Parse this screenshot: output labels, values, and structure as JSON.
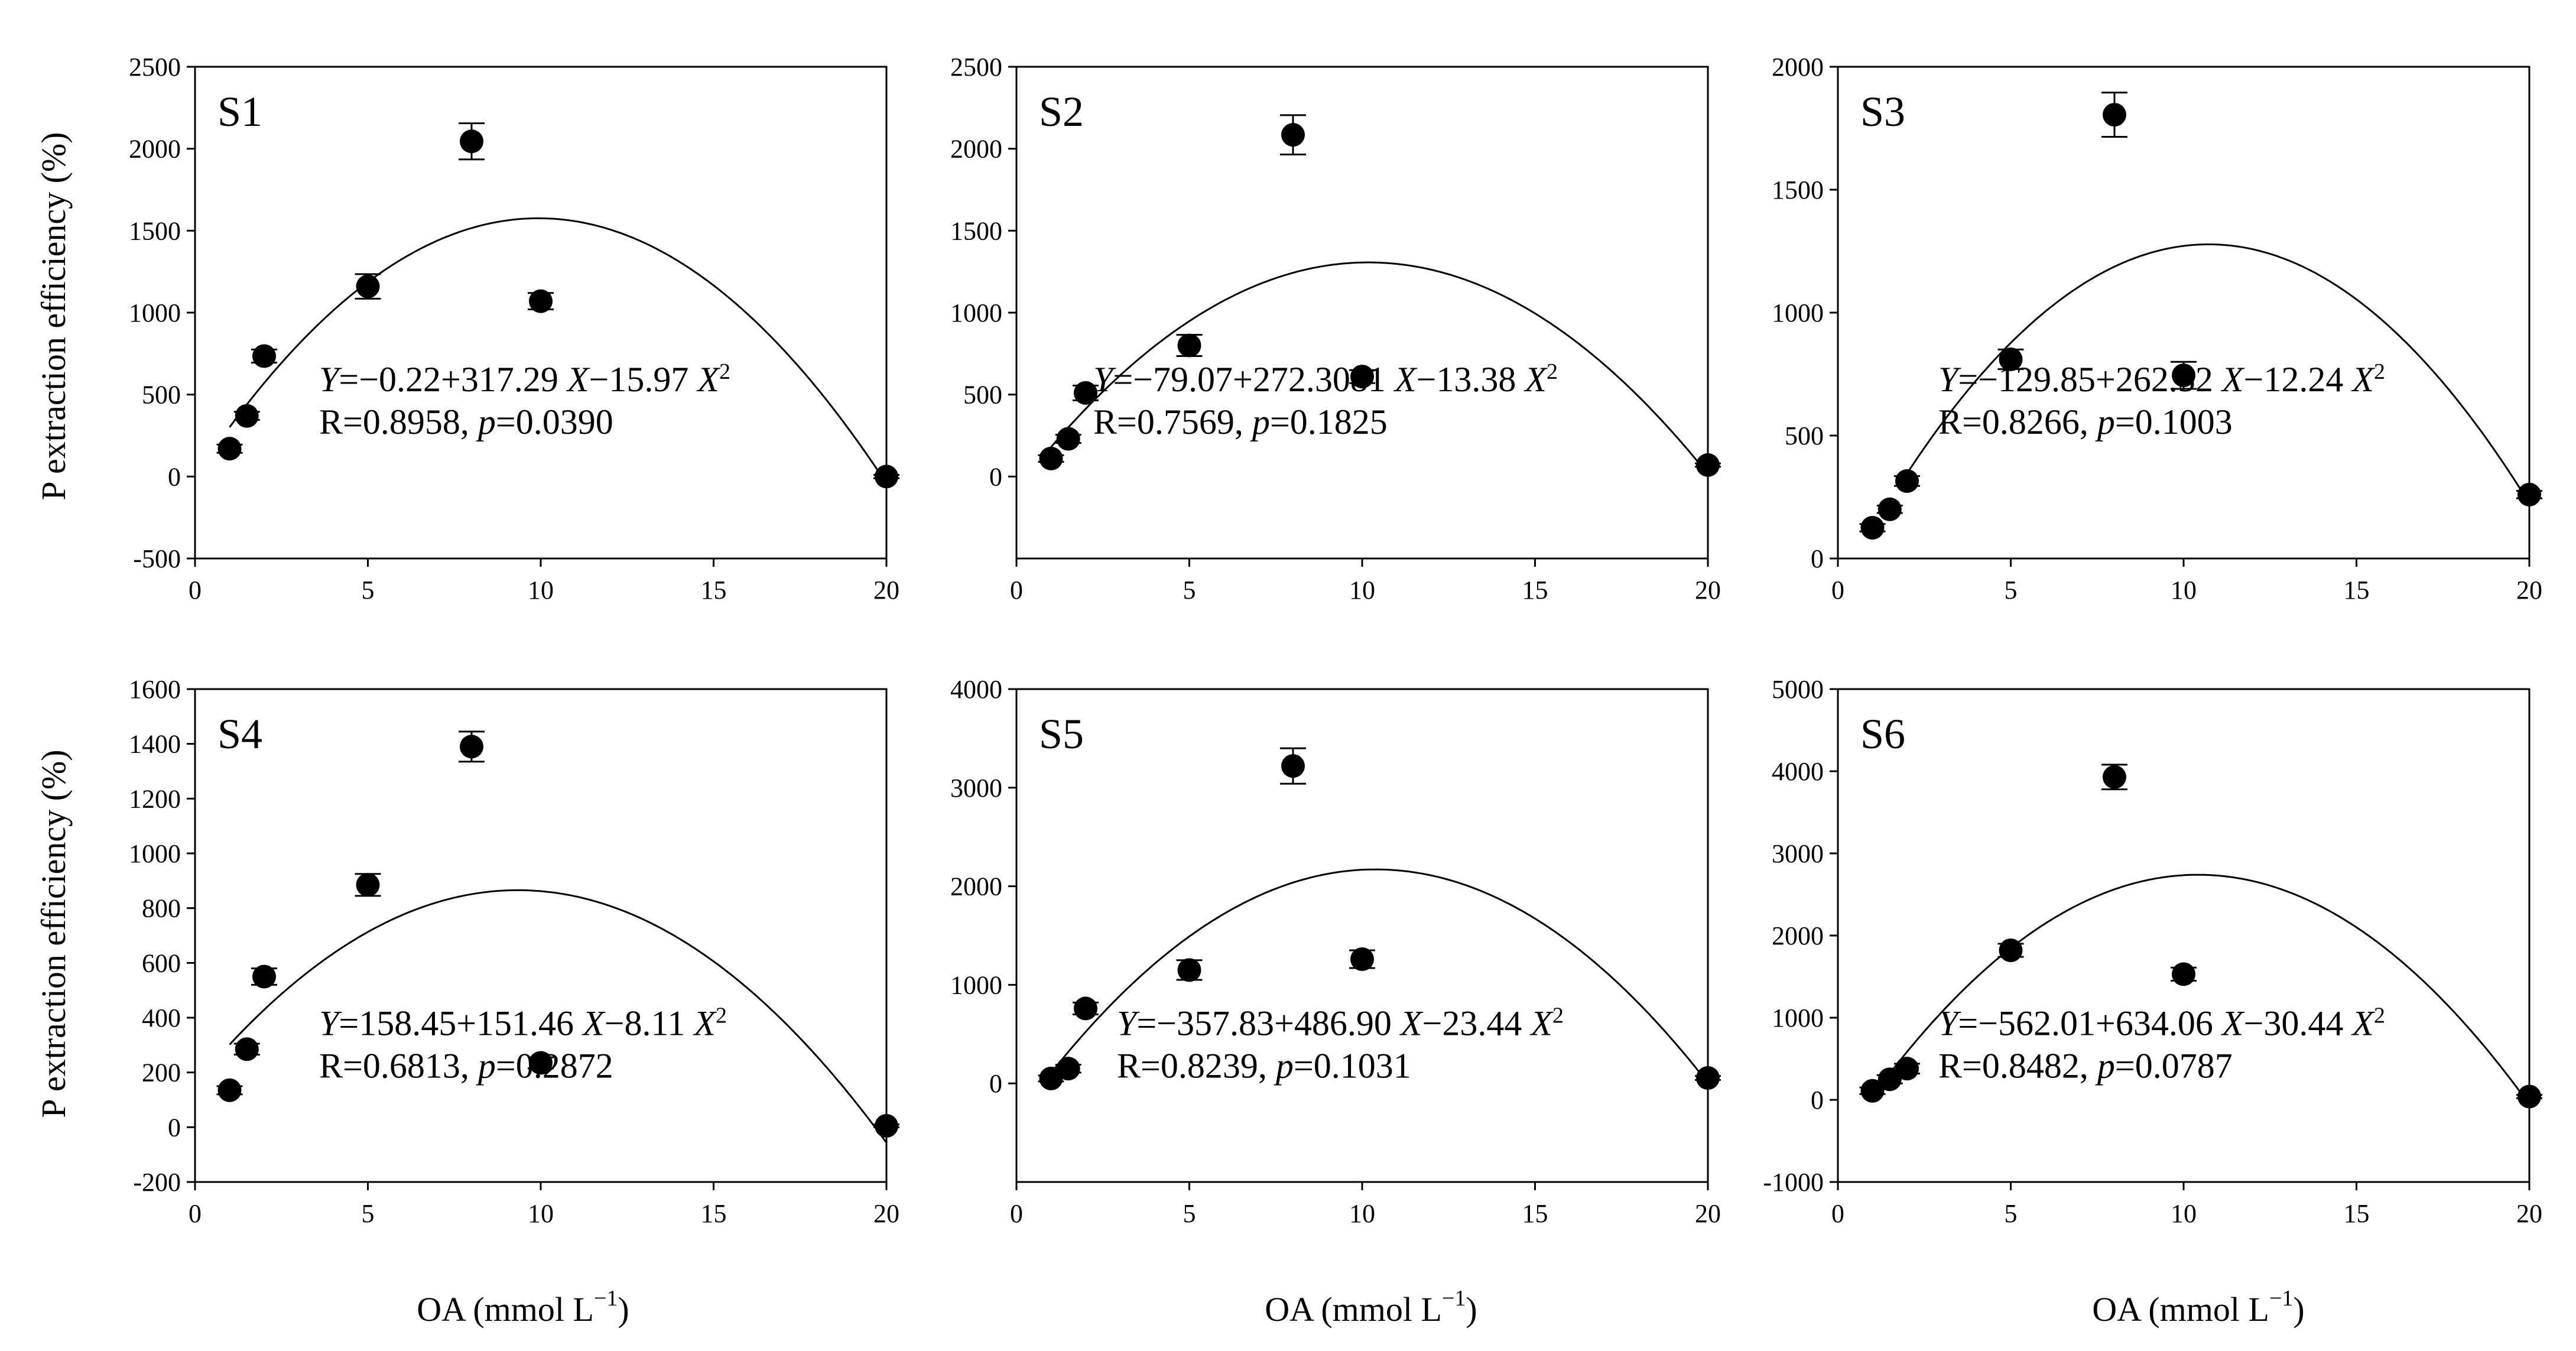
{
  "figure": {
    "ylabel": "P extraction efficiency (%)",
    "xlabel_main": "OA (mmol L",
    "xlabel_sup": "−1",
    "xlabel_close": ")"
  },
  "chart_data": [
    {
      "type": "scatter",
      "panel": "S1",
      "x": [
        1,
        1.5,
        2,
        5,
        8,
        10,
        20
      ],
      "y": [
        170,
        370,
        735,
        1160,
        2045,
        1070,
        0
      ],
      "yerr": [
        25,
        25,
        40,
        75,
        110,
        50,
        10
      ],
      "xlim": [
        0,
        20
      ],
      "ylim": [
        -500,
        2500
      ],
      "xticks": [
        0,
        5,
        10,
        15,
        20
      ],
      "xtick_labels": [
        "0",
        "5",
        "10",
        "15",
        "20"
      ],
      "yticks": [
        -500,
        0,
        500,
        1000,
        1500,
        2000,
        2500
      ],
      "ytick_labels": [
        "-500",
        "0",
        "500",
        "1000",
        "1500",
        "2000",
        "2500"
      ],
      "fit": {
        "a": -0.22,
        "b": 317.29,
        "c": -15.97,
        "x_from": 1,
        "x_to": 20
      },
      "eq": {
        "y": "Y",
        "pre": "=−0.22+317.29 ",
        "x1": "X",
        "mid": "−15.97 ",
        "x2": "X",
        "exp": "2"
      },
      "stat": {
        "r": "R=0.8958, ",
        "p": "p",
        "pv": "=0.0390"
      }
    },
    {
      "type": "scatter",
      "panel": "S2",
      "x": [
        1,
        1.5,
        2,
        5,
        8,
        10,
        20
      ],
      "y": [
        110,
        230,
        510,
        800,
        2085,
        610,
        70
      ],
      "yerr": [
        20,
        25,
        45,
        65,
        120,
        40,
        10
      ],
      "xlim": [
        0,
        20
      ],
      "ylim": [
        -500,
        2500
      ],
      "xticks": [
        0,
        5,
        10,
        15,
        20
      ],
      "xtick_labels": [
        "0",
        "5",
        "10",
        "15",
        "20"
      ],
      "yticks": [
        0,
        500,
        1000,
        1500,
        2000,
        2500
      ],
      "ytick_labels": [
        "0",
        "500",
        "1000",
        "1500",
        "2000",
        "2500"
      ],
      "fit": {
        "a": -79.07,
        "b": 272.3081,
        "c": -13.38,
        "x_from": 1,
        "x_to": 20
      },
      "eq": {
        "y": "Y",
        "pre": "=−79.07+272.3081 ",
        "x1": "X",
        "mid": "−13.38 ",
        "x2": "X",
        "exp": "2"
      },
      "stat": {
        "r": "R=0.7569, ",
        "p": "p",
        "pv": "=0.1825"
      }
    },
    {
      "type": "scatter",
      "panel": "S3",
      "x": [
        1,
        1.5,
        2,
        5,
        8,
        10,
        20
      ],
      "y": [
        125,
        200,
        315,
        810,
        1805,
        745,
        260
      ],
      "yerr": [
        15,
        15,
        20,
        40,
        90,
        55,
        15
      ],
      "xlim": [
        0,
        20
      ],
      "ylim": [
        0,
        2000
      ],
      "xticks": [
        0,
        5,
        10,
        15,
        20
      ],
      "xtick_labels": [
        "0",
        "5",
        "10",
        "15",
        "20"
      ],
      "yticks": [
        0,
        500,
        1000,
        1500,
        2000
      ],
      "ytick_labels": [
        "0",
        "500",
        "1000",
        "1500",
        "2000"
      ],
      "fit": {
        "a": -129.85,
        "b": 262.52,
        "c": -12.24,
        "x_from": 1.85,
        "x_to": 20
      },
      "eq": {
        "y": "Y",
        "pre": "=−129.85+262.52 ",
        "x1": "X",
        "mid": "−12.24 ",
        "x2": "X",
        "exp": "2"
      },
      "stat": {
        "r": "R=0.8266, ",
        "p": "p",
        "pv": "=0.1003"
      }
    },
    {
      "type": "scatter",
      "panel": "S4",
      "x": [
        1,
        1.5,
        2,
        5,
        8,
        10,
        20
      ],
      "y": [
        135,
        285,
        550,
        885,
        1390,
        235,
        5
      ],
      "yerr": [
        15,
        20,
        30,
        40,
        55,
        20,
        5
      ],
      "xlim": [
        0,
        20
      ],
      "ylim": [
        -200,
        1600
      ],
      "xticks": [
        0,
        5,
        10,
        15,
        20
      ],
      "xtick_labels": [
        "0",
        "5",
        "10",
        "15",
        "20"
      ],
      "yticks": [
        -200,
        0,
        200,
        400,
        600,
        800,
        1000,
        1200,
        1400,
        1600
      ],
      "ytick_labels": [
        "-200",
        "0",
        "200",
        "400",
        "600",
        "800",
        "1000",
        "1200",
        "1400",
        "1600"
      ],
      "fit": {
        "a": 158.45,
        "b": 151.46,
        "c": -8.11,
        "x_from": 1,
        "x_to": 20
      },
      "eq": {
        "y": "Y",
        "pre": "=158.45+151.46 ",
        "x1": "X",
        "mid": "−8.11 ",
        "x2": "X",
        "exp": "2"
      },
      "stat": {
        "r": "R=0.6813, ",
        "p": "p",
        "pv": "=0.2872"
      }
    },
    {
      "type": "scatter",
      "panel": "S5",
      "x": [
        1,
        1.5,
        2,
        5,
        8,
        10,
        20
      ],
      "y": [
        50,
        150,
        760,
        1150,
        3220,
        1260,
        55
      ],
      "yerr": [
        30,
        40,
        60,
        100,
        180,
        90,
        20
      ],
      "xlim": [
        0,
        20
      ],
      "ylim": [
        -1000,
        4000
      ],
      "xticks": [
        0,
        5,
        10,
        15,
        20
      ],
      "xtick_labels": [
        "0",
        "5",
        "10",
        "15",
        "20"
      ],
      "yticks": [
        0,
        1000,
        2000,
        3000,
        4000
      ],
      "ytick_labels": [
        "0",
        "1000",
        "2000",
        "3000",
        "4000"
      ],
      "fit": {
        "a": -357.83,
        "b": 486.9,
        "c": -23.44,
        "x_from": 1,
        "x_to": 20
      },
      "eq": {
        "y": "Y",
        "pre": "=−357.83+486.90 ",
        "x1": "X",
        "mid": "−23.44 ",
        "x2": "X",
        "exp": "2"
      },
      "stat": {
        "r": "R=0.8239, ",
        "p": "p",
        "pv": "=0.1031"
      }
    },
    {
      "type": "scatter",
      "panel": "S6",
      "x": [
        1,
        1.5,
        2,
        5,
        8,
        10,
        20
      ],
      "y": [
        110,
        250,
        380,
        1820,
        3930,
        1530,
        40
      ],
      "yerr": [
        40,
        50,
        60,
        80,
        150,
        80,
        20
      ],
      "xlim": [
        0,
        20
      ],
      "ylim": [
        -1000,
        5000
      ],
      "xticks": [
        0,
        5,
        10,
        15,
        20
      ],
      "xtick_labels": [
        "0",
        "5",
        "10",
        "15",
        "20"
      ],
      "yticks": [
        -1000,
        0,
        1000,
        2000,
        3000,
        4000,
        5000
      ],
      "ytick_labels": [
        "-1000",
        "0",
        "1000",
        "2000",
        "3000",
        "4000",
        "5000"
      ],
      "fit": {
        "a": -562.01,
        "b": 634.06,
        "c": -30.44,
        "x_from": 1,
        "x_to": 20
      },
      "eq": {
        "y": "Y",
        "pre": "=−562.01+634.06 ",
        "x1": "X",
        "mid": "−30.44 ",
        "x2": "X",
        "exp": "2"
      },
      "stat": {
        "r": "R=0.8482, ",
        "p": "p",
        "pv": "=0.0787"
      }
    }
  ]
}
